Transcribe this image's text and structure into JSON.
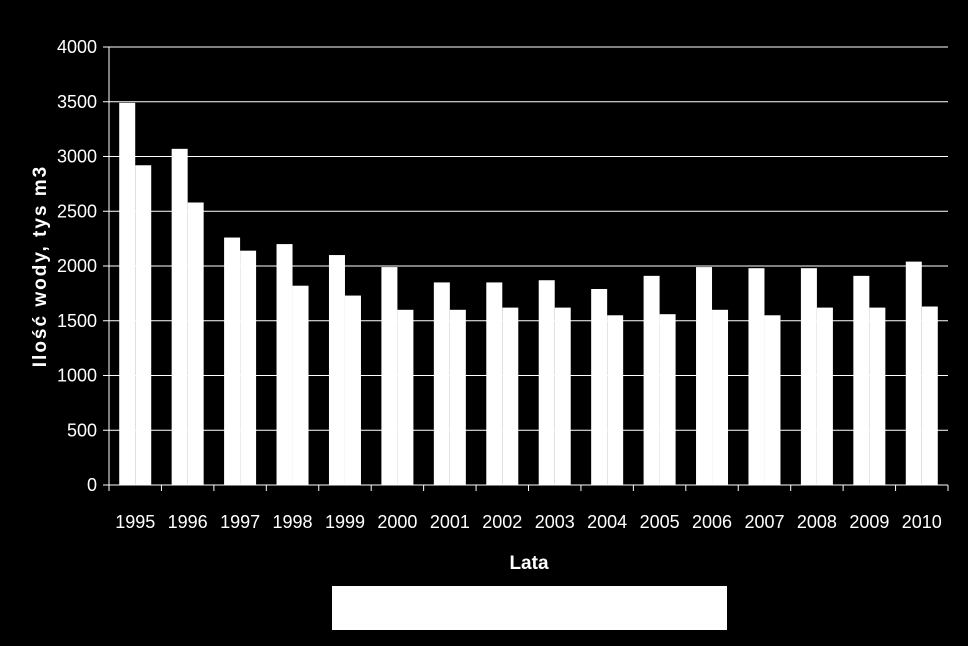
{
  "colors": {
    "background": "#000000",
    "bars": "#ffffff",
    "axis": "#ffffff",
    "grid": "#ffffff"
  },
  "chart_data": {
    "type": "bar",
    "xlabel": "Lata",
    "ylabel": "Ilość wody, tys m3",
    "ylim": [
      0,
      4000
    ],
    "yticks": [
      0,
      500,
      1000,
      1500,
      2000,
      2500,
      3000,
      3500,
      4000
    ],
    "grid": true,
    "categories": [
      "1995",
      "1996",
      "1997",
      "1998",
      "1999",
      "2000",
      "2001",
      "2002",
      "2003",
      "2004",
      "2005",
      "2006",
      "2007",
      "2008",
      "2009",
      "2010"
    ],
    "series": [
      {
        "values": [
          3490,
          3070,
          2260,
          2200,
          2100,
          1990,
          1850,
          1850,
          1870,
          1790,
          1910,
          1990,
          1980,
          1980,
          1910,
          2040
        ]
      },
      {
        "values": [
          2920,
          2580,
          2140,
          1820,
          1730,
          1600,
          1600,
          1620,
          1620,
          1550,
          1560,
          1600,
          1550,
          1620,
          1620,
          1630
        ]
      }
    ],
    "legend": {
      "position": "bottom",
      "entries": []
    }
  }
}
